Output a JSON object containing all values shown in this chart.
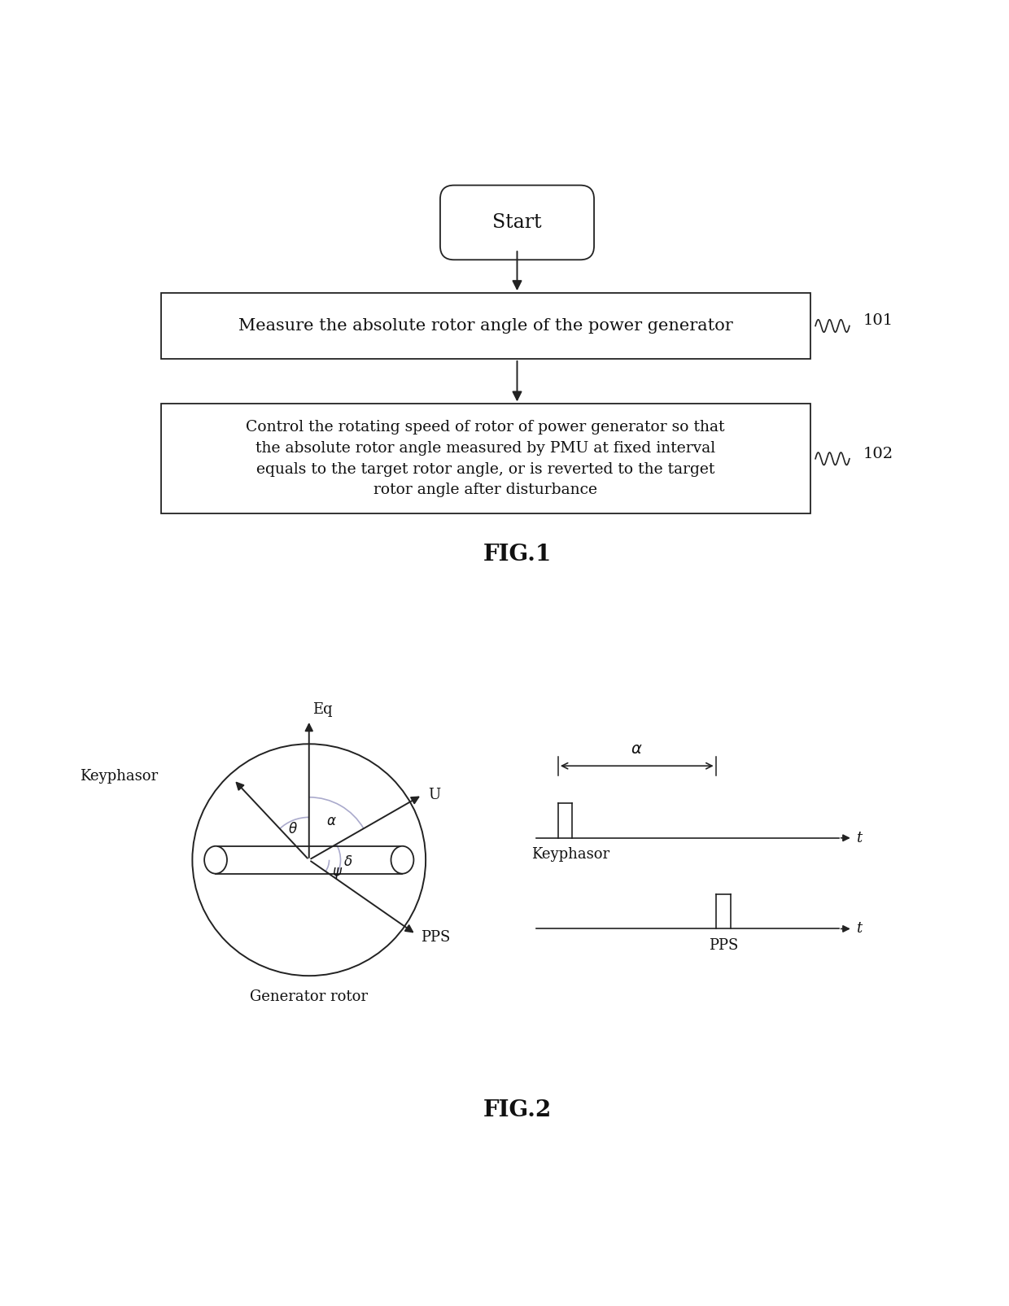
{
  "bg_color": "#ffffff",
  "fig1_title": "FIG.1",
  "fig2_title": "FIG.2",
  "start_text": "Start",
  "box1_text": "Measure the absolute rotor angle of the power generator",
  "box2_line1": "Control the rotating speed of rotor of power generator so that",
  "box2_line2": "the absolute rotor angle measured by PMU at fixed interval",
  "box2_line3": "equals to the target rotor angle, or is reverted to the target",
  "box2_line4": "rotor angle after disturbance",
  "label101": "101",
  "label102": "102",
  "line_color": "#222222",
  "text_color": "#111111",
  "arc_color": "#aaaacc",
  "fig_w": 12.4,
  "fig_h": 16.05
}
